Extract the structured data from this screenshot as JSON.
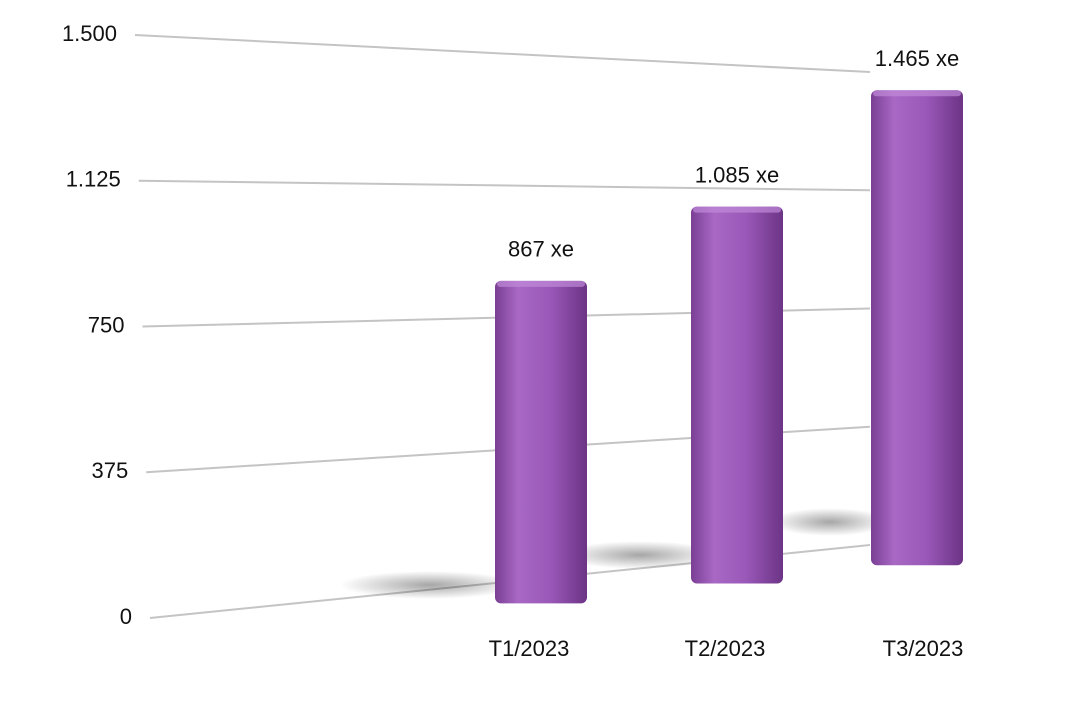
{
  "chart_data": {
    "type": "bar",
    "categories": [
      "T1/2023",
      "T2/2023",
      "T3/2023"
    ],
    "values": [
      867,
      1085,
      1465
    ],
    "value_labels": [
      "867 xe",
      "1.085 xe",
      "1.465 xe"
    ],
    "color": "#9b59b6",
    "ylim": [
      0,
      1500
    ],
    "yticks": [
      0,
      375,
      750,
      {
        "value": 1125,
        "label": "1.125"
      },
      {
        "value": 1500,
        "label": "1.500"
      }
    ],
    "grid": true
  }
}
